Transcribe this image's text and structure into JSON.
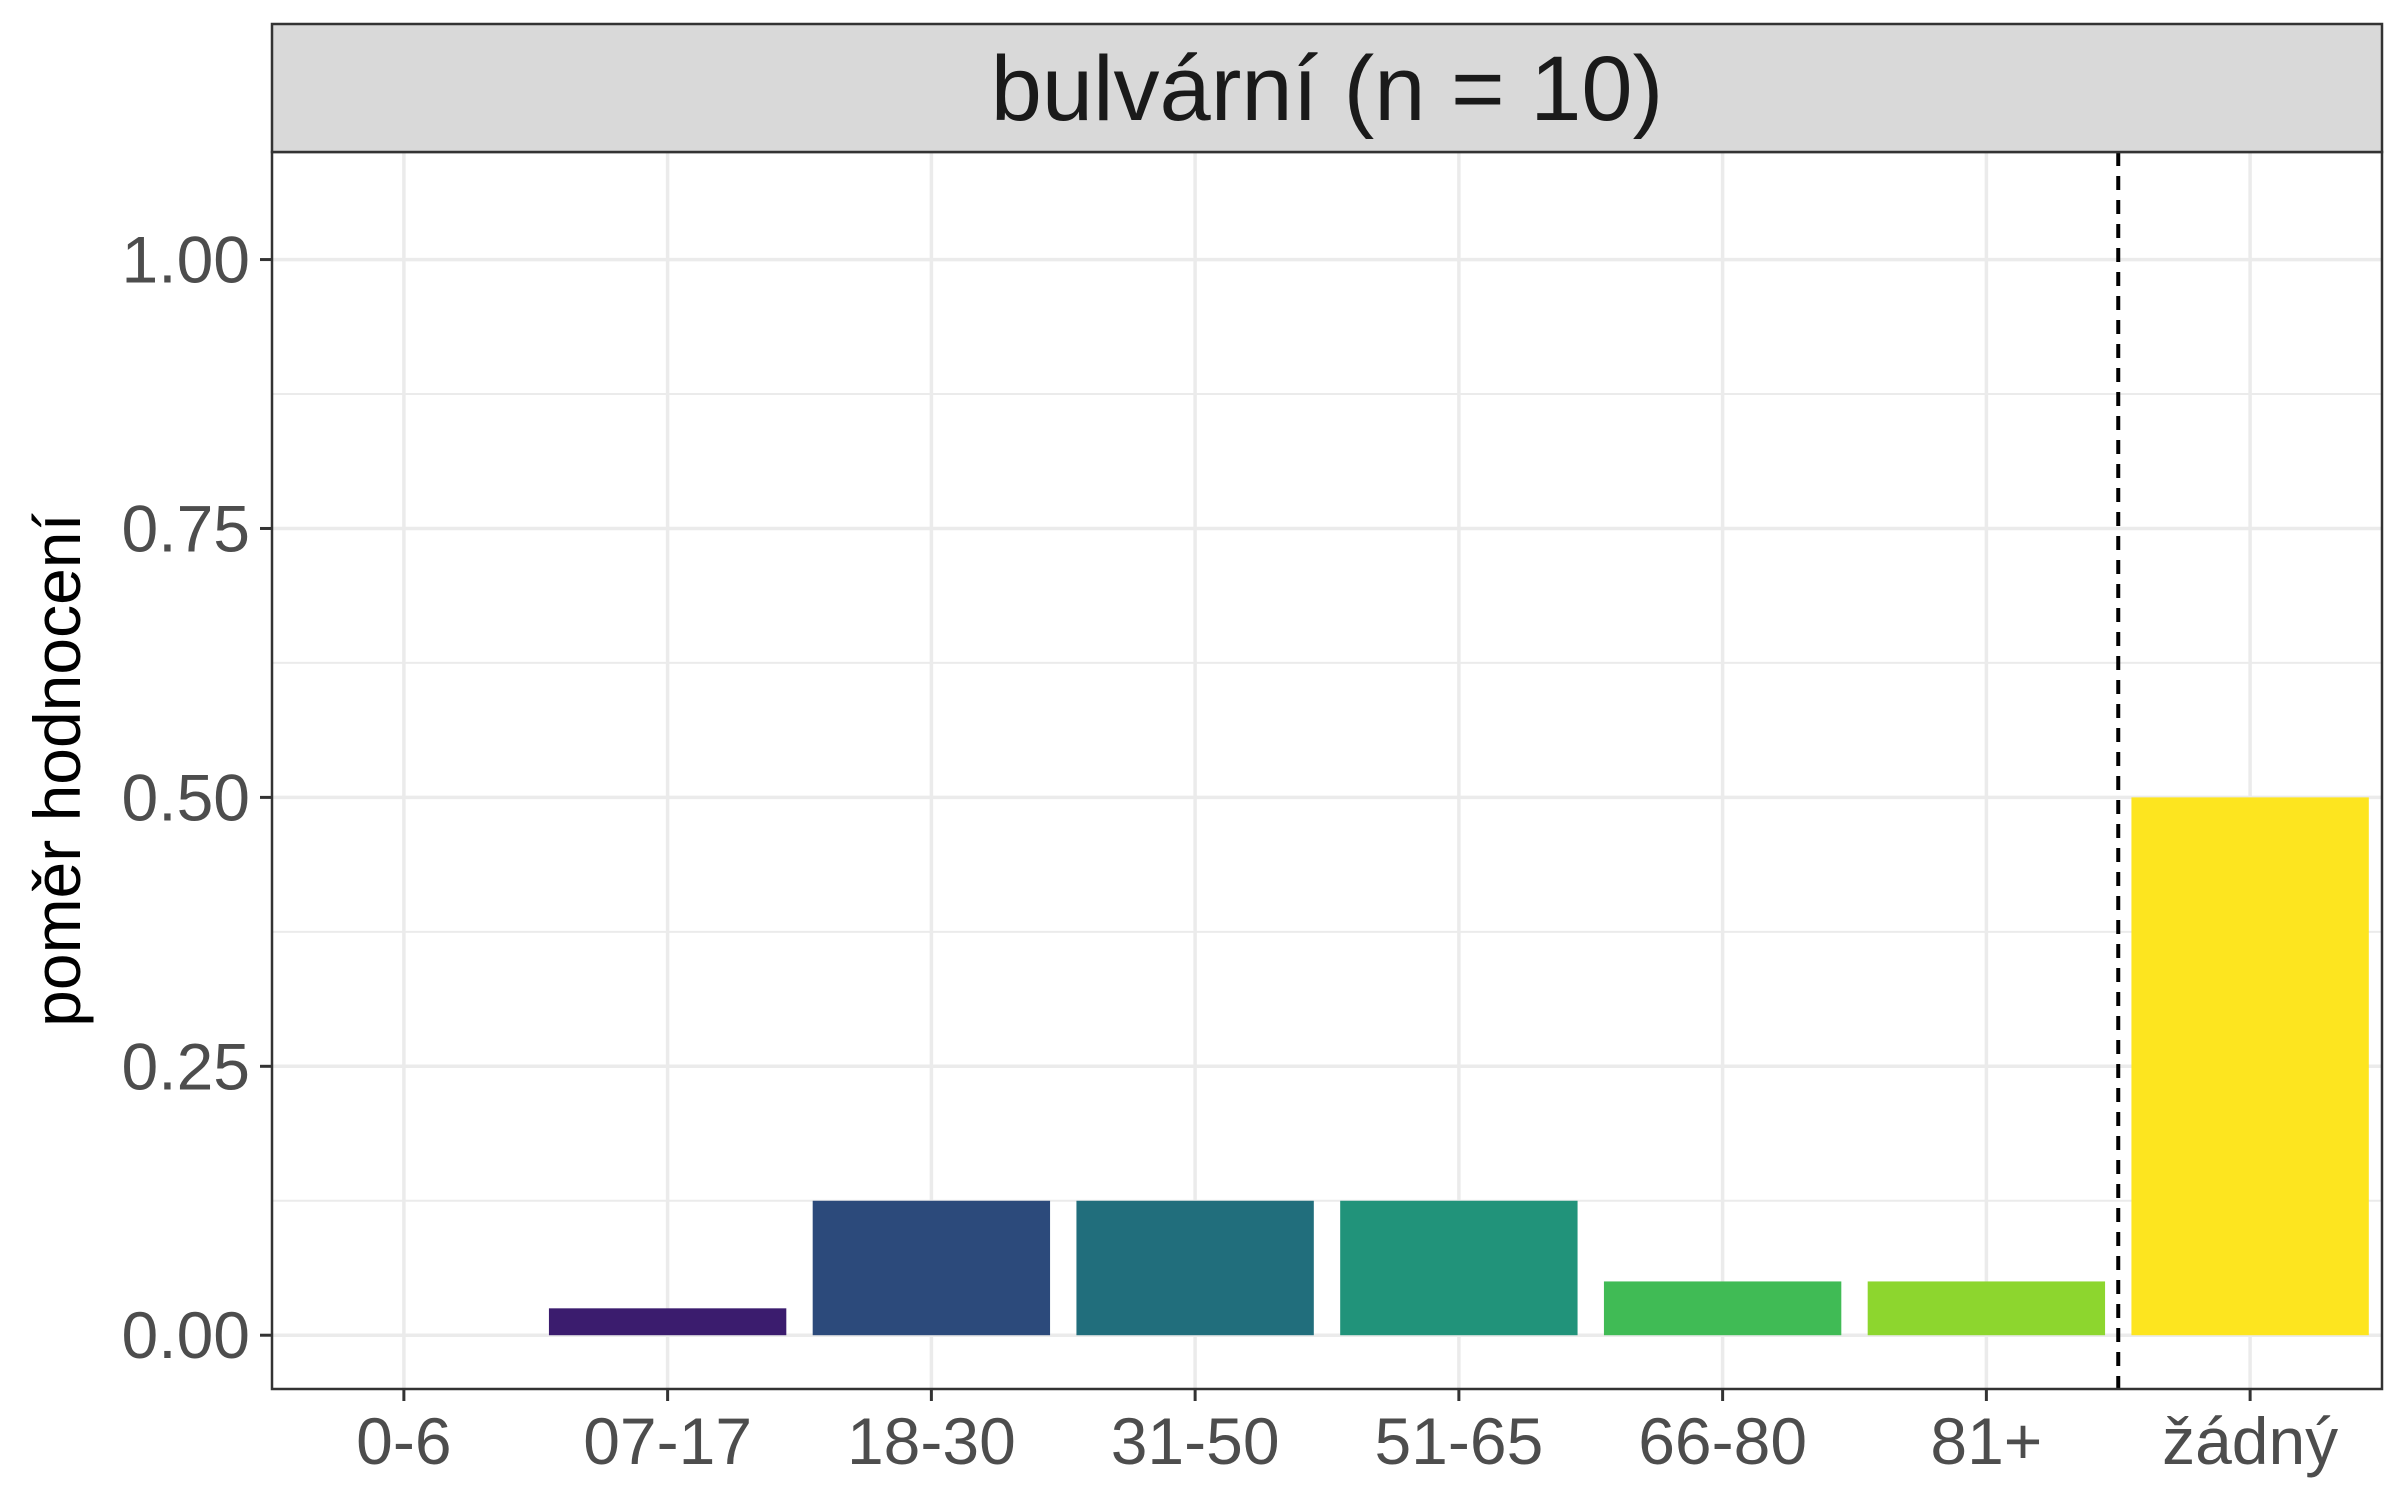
{
  "chart_data": {
    "type": "bar",
    "facet_title": "bulvární (n = 10)",
    "xlabel": "",
    "ylabel": "poměr hodnocení",
    "categories": [
      "0-6",
      "07-17",
      "18-30",
      "31-50",
      "51-65",
      "66-80",
      "81+",
      "žádný"
    ],
    "values": [
      0.0,
      0.025,
      0.125,
      0.125,
      0.125,
      0.05,
      0.05,
      0.5
    ],
    "colors": [
      "#440154",
      "#3B1C6E",
      "#2C4A7B",
      "#216E7C",
      "#21937A",
      "#40BB55",
      "#8DD62E",
      "#FDE51F"
    ],
    "ylim": [
      -0.05,
      1.1
    ],
    "yticks": [
      0.0,
      0.25,
      0.5,
      0.75,
      1.0
    ],
    "ytick_labels": [
      "0.00",
      "0.25",
      "0.50",
      "0.75",
      "1.00"
    ],
    "grid": true,
    "reference_line": {
      "between": [
        "81+",
        "žádný"
      ],
      "style": "dashed"
    }
  }
}
